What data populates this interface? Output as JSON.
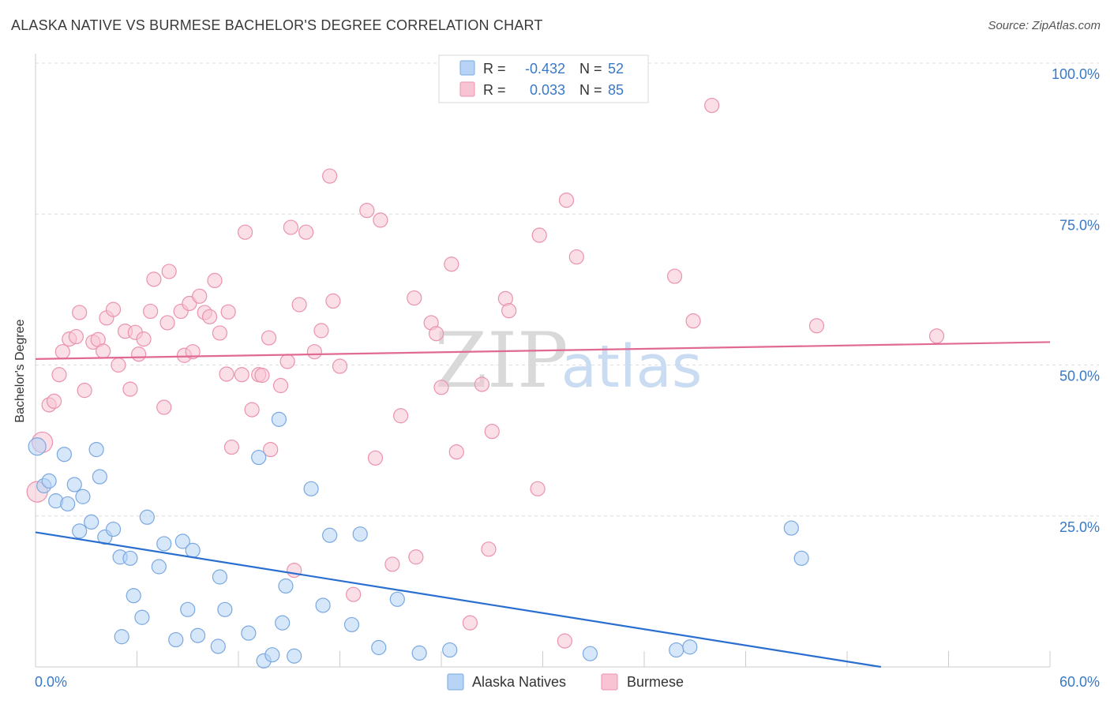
{
  "title": "ALASKA NATIVE VS BURMESE BACHELOR'S DEGREE CORRELATION CHART",
  "source": "Source: ZipAtlas.com",
  "watermark": {
    "zip": "ZIP",
    "atlas": "atlas"
  },
  "colors": {
    "alaska_fill": "#b7d3f5",
    "alaska_stroke": "#7aa8e0",
    "alaska_line": "#2a6fd0",
    "burmese_fill": "#f8c4d4",
    "burmese_stroke": "#eb92ae",
    "burmese_line": "#e06a92",
    "value_text": "#3a78c8",
    "grid": "#dddddd"
  },
  "legend": {
    "rows": [
      {
        "r_label": "R =",
        "r_value": "-0.432",
        "n_label": "N =",
        "n_value": "52"
      },
      {
        "r_label": "R =",
        "r_value": "0.033",
        "n_label": "N =",
        "n_value": "85"
      }
    ]
  },
  "chart_data": {
    "type": "scatter",
    "title": "ALASKA NATIVE VS BURMESE BACHELOR'S DEGREE CORRELATION CHART",
    "xlabel": "",
    "ylabel": "Bachelor's Degree",
    "xlim": [
      0,
      60
    ],
    "ylim": [
      0,
      100
    ],
    "x_tick_labels": [
      "0.0%",
      "60.0%"
    ],
    "y_ticks": [
      25,
      50,
      75,
      100
    ],
    "y_tick_labels": [
      "25.0%",
      "50.0%",
      "75.0%",
      "100.0%"
    ],
    "grid": true,
    "legend_position": "bottom-center",
    "series": [
      {
        "name": "Alaska Natives",
        "trend": {
          "x": [
            0,
            50
          ],
          "y": [
            22.3,
            0
          ]
        },
        "points": [
          [
            0.1,
            36.5
          ],
          [
            0.5,
            30
          ],
          [
            0.8,
            30.8
          ],
          [
            1.2,
            27.5
          ],
          [
            1.7,
            35.2
          ],
          [
            1.9,
            27
          ],
          [
            2.3,
            30.2
          ],
          [
            2.6,
            22.5
          ],
          [
            2.8,
            28.2
          ],
          [
            3.3,
            24
          ],
          [
            3.6,
            36
          ],
          [
            3.8,
            31.5
          ],
          [
            4.1,
            21.5
          ],
          [
            4.6,
            22.8
          ],
          [
            5.0,
            18.2
          ],
          [
            5.6,
            18
          ],
          [
            5.8,
            11.8
          ],
          [
            6.3,
            8.2
          ],
          [
            5.1,
            5
          ],
          [
            6.6,
            24.8
          ],
          [
            7.3,
            16.6
          ],
          [
            7.6,
            20.4
          ],
          [
            8.3,
            4.5
          ],
          [
            8.7,
            20.8
          ],
          [
            9.0,
            9.5
          ],
          [
            9.3,
            19.3
          ],
          [
            9.6,
            5.2
          ],
          [
            10.8,
            3.4
          ],
          [
            10.9,
            14.9
          ],
          [
            11.2,
            9.5
          ],
          [
            12.6,
            5.6
          ],
          [
            13.2,
            34.7
          ],
          [
            13.5,
            1
          ],
          [
            14.0,
            2
          ],
          [
            14.6,
            7.3
          ],
          [
            14.8,
            13.4
          ],
          [
            15.3,
            1.8
          ],
          [
            14.4,
            41
          ],
          [
            16.3,
            29.5
          ],
          [
            17.0,
            10.2
          ],
          [
            17.4,
            21.8
          ],
          [
            18.7,
            7
          ],
          [
            19.2,
            22
          ],
          [
            20.3,
            3.2
          ],
          [
            21.4,
            11.2
          ],
          [
            22.7,
            2.3
          ],
          [
            24.5,
            2.8
          ],
          [
            32.8,
            2.2
          ],
          [
            37.9,
            2.8
          ],
          [
            38.7,
            3.3
          ],
          [
            44.7,
            23
          ],
          [
            45.3,
            18
          ]
        ]
      },
      {
        "name": "Burmese",
        "trend": {
          "x": [
            0,
            60
          ],
          "y": [
            51,
            53.8
          ]
        },
        "points": [
          [
            0.1,
            29
          ],
          [
            0.4,
            37.2
          ],
          [
            0.8,
            43.4
          ],
          [
            1.1,
            44
          ],
          [
            1.4,
            48.4
          ],
          [
            1.6,
            52.2
          ],
          [
            2.0,
            54.3
          ],
          [
            2.4,
            54.7
          ],
          [
            2.6,
            58.7
          ],
          [
            2.9,
            45.8
          ],
          [
            3.4,
            53.8
          ],
          [
            3.7,
            54.2
          ],
          [
            4.0,
            52.3
          ],
          [
            4.2,
            57.8
          ],
          [
            4.6,
            59.2
          ],
          [
            4.9,
            50
          ],
          [
            5.3,
            55.6
          ],
          [
            5.6,
            46
          ],
          [
            5.9,
            55.4
          ],
          [
            6.1,
            51.8
          ],
          [
            6.4,
            54.3
          ],
          [
            6.8,
            58.9
          ],
          [
            7.0,
            64.2
          ],
          [
            7.6,
            43
          ],
          [
            7.8,
            57
          ],
          [
            7.9,
            65.5
          ],
          [
            8.6,
            58.9
          ],
          [
            8.8,
            51.6
          ],
          [
            9.1,
            60.2
          ],
          [
            9.3,
            52.2
          ],
          [
            9.7,
            61.4
          ],
          [
            10.0,
            58.7
          ],
          [
            10.3,
            58
          ],
          [
            10.6,
            64
          ],
          [
            10.9,
            55.3
          ],
          [
            11.3,
            48.5
          ],
          [
            11.4,
            58.8
          ],
          [
            11.6,
            36.4
          ],
          [
            12.2,
            48.4
          ],
          [
            12.4,
            72
          ],
          [
            12.8,
            42.6
          ],
          [
            13.2,
            48.4
          ],
          [
            13.4,
            48.3
          ],
          [
            13.8,
            54.5
          ],
          [
            13.9,
            36
          ],
          [
            14.5,
            46.6
          ],
          [
            14.9,
            50.6
          ],
          [
            15.1,
            72.8
          ],
          [
            15.3,
            16
          ],
          [
            15.6,
            60
          ],
          [
            16.0,
            72
          ],
          [
            16.5,
            52.2
          ],
          [
            16.9,
            55.7
          ],
          [
            17.4,
            81.3
          ],
          [
            17.6,
            60.6
          ],
          [
            18.0,
            49.8
          ],
          [
            18.8,
            12
          ],
          [
            19.6,
            75.6
          ],
          [
            20.1,
            34.6
          ],
          [
            20.4,
            74
          ],
          [
            21.1,
            17
          ],
          [
            21.6,
            41.6
          ],
          [
            22.4,
            61.1
          ],
          [
            22.5,
            18.2
          ],
          [
            23.4,
            57
          ],
          [
            23.7,
            55.2
          ],
          [
            24.0,
            46.3
          ],
          [
            24.6,
            66.7
          ],
          [
            24.9,
            35.6
          ],
          [
            25.7,
            7.3
          ],
          [
            26.4,
            46.8
          ],
          [
            26.8,
            19.5
          ],
          [
            27.0,
            39
          ],
          [
            27.8,
            61
          ],
          [
            28.0,
            59
          ],
          [
            29.7,
            29.5
          ],
          [
            29.8,
            71.5
          ],
          [
            31.3,
            4.3
          ],
          [
            31.4,
            77.3
          ],
          [
            32.0,
            67.9
          ],
          [
            37.8,
            64.7
          ],
          [
            38.9,
            57.3
          ],
          [
            40.0,
            93
          ],
          [
            46.2,
            56.5
          ],
          [
            53.3,
            54.8
          ]
        ]
      }
    ]
  }
}
